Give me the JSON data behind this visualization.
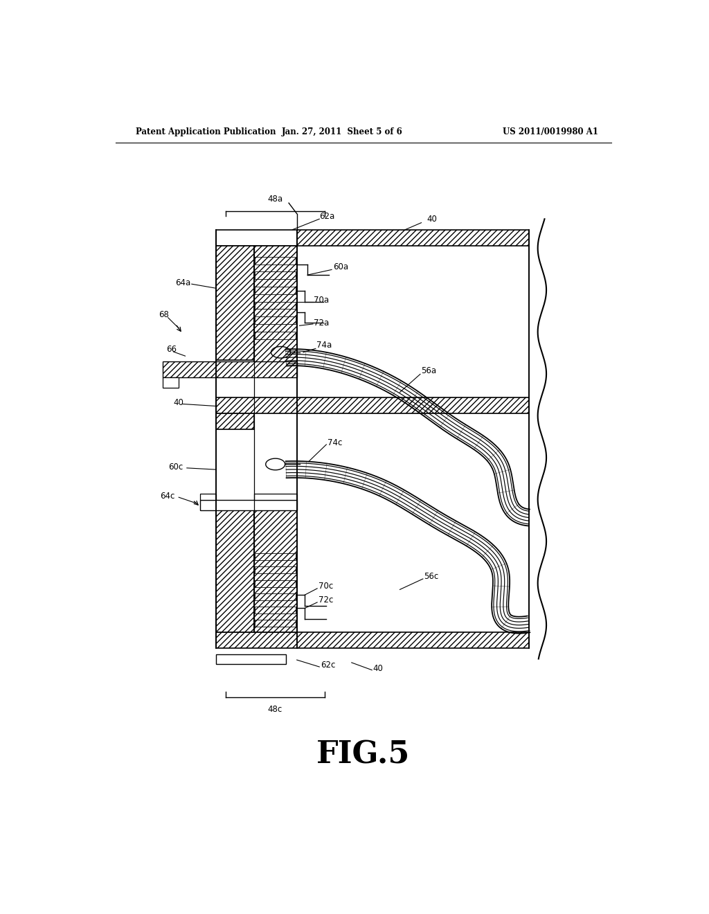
{
  "header_left": "Patent Application Publication",
  "header_mid": "Jan. 27, 2011  Sheet 5 of 6",
  "header_right": "US 2011/0019980 A1",
  "figure_label": "FIG.5",
  "bg_color": "#ffffff",
  "line_color": "#1a1a1a",
  "label_fs": 8.5
}
